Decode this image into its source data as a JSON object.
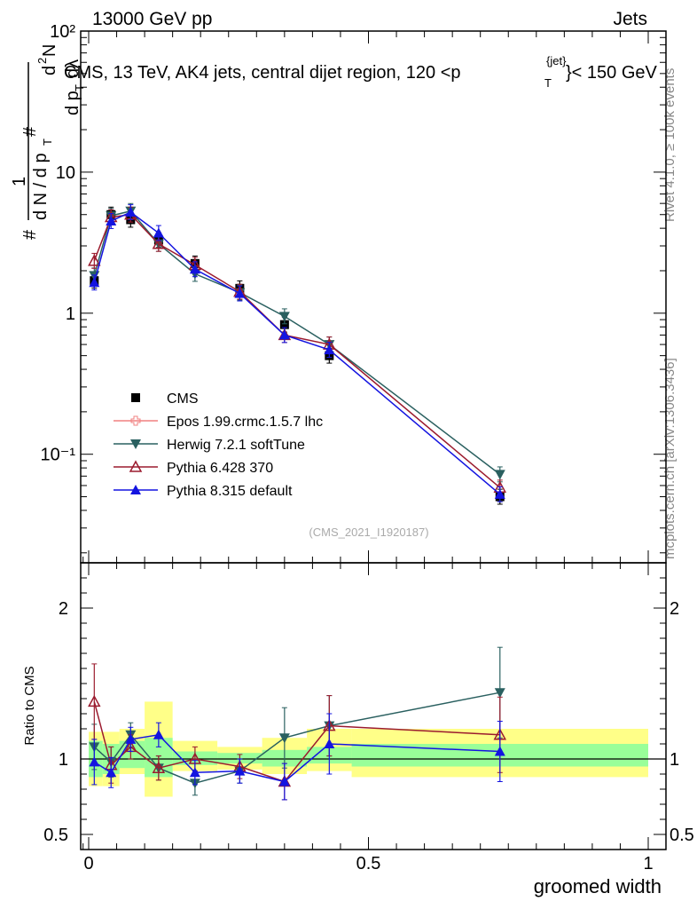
{
  "header": {
    "left": "13000 GeV pp",
    "right": "Jets",
    "plot_title": "CMS, 13 TeV, AK4 jets, central dijet region, 120 <p",
    "plot_title_sub": "T",
    "plot_title_sup": "{jet}",
    "plot_title_end": "}< 150 GeV"
  },
  "side": {
    "rivet": "Rivet 4.1.0, ≥ 100k events",
    "mcplots": "mcplots.cern.ch [arXiv:1306.3436]"
  },
  "analysis_tag": "(CMS_2021_I1920187)",
  "ylabel_main": {
    "hash1": "#",
    "num1": "1",
    "den1": "d N / d p",
    "den1_sub": "T",
    "hash2": "#",
    "num2": "d",
    "num2_sup": "2",
    "num2_rest": "N",
    "den2": "d p",
    "den2_sub": "T",
    "den2_rest": "dλ"
  },
  "ylabel_ratio": "Ratio to CMS",
  "xlabel": "groomed width",
  "colors": {
    "cms": "#000000",
    "epos": "#f08080",
    "herwig": "#2a6060",
    "pythia6": "#9b1b2e",
    "pythia8": "#1414e0",
    "band_green": "#99ff99",
    "band_yellow": "#ffff88"
  },
  "chart_data": [
    {
      "type": "scatter",
      "panel": "main",
      "yscale": "log",
      "ylim": [
        0.017,
        100
      ],
      "xlim": [
        -0.02,
        1.0
      ],
      "y_tick_labels": [
        "10⁻¹",
        "1",
        "10",
        "10²"
      ],
      "x": [
        0.01,
        0.04,
        0.075,
        0.125,
        0.19,
        0.27,
        0.35,
        0.43,
        0.735
      ],
      "series": [
        {
          "name": "CMS",
          "key": "cms",
          "marker": "square",
          "values": [
            1.7,
            5.0,
            4.6,
            3.3,
            2.25,
            1.5,
            0.83,
            0.5,
            0.05
          ]
        },
        {
          "name": "Epos 1.99.crmc.1.5.7 lhc",
          "key": "epos",
          "marker": "open-cross",
          "values": [
            null,
            null,
            null,
            null,
            null,
            null,
            null,
            null,
            null
          ]
        },
        {
          "name": "Herwig 7.2.1 softTune",
          "key": "herwig",
          "marker": "triangle-down",
          "values": [
            1.85,
            4.9,
            5.3,
            3.1,
            1.9,
            1.4,
            0.95,
            0.6,
            0.072
          ]
        },
        {
          "name": "Pythia 6.428 370",
          "key": "pythia6",
          "marker": "open-triangle",
          "values": [
            2.35,
            4.8,
            5.0,
            3.1,
            2.2,
            1.42,
            0.7,
            0.6,
            0.058
          ]
        },
        {
          "name": "Pythia 8.315 default",
          "key": "pythia8",
          "marker": "triangle",
          "values": [
            1.65,
            4.5,
            5.2,
            3.7,
            2.05,
            1.38,
            0.7,
            0.55,
            0.052
          ]
        }
      ],
      "legend": [
        "CMS",
        "Epos 1.99.crmc.1.5.7 lhc",
        "Herwig 7.2.1 softTune",
        "Pythia 6.428 370",
        "Pythia 8.315 default"
      ]
    },
    {
      "type": "scatter",
      "panel": "ratio",
      "ylim": [
        0.4,
        2.3
      ],
      "xlim": [
        -0.02,
        1.0
      ],
      "y_ticks": [
        0.5,
        1,
        2
      ],
      "y_tick_labels": [
        "0.5",
        "1",
        "2"
      ],
      "x_ticks": [
        0,
        0.5,
        1
      ],
      "x_tick_labels": [
        "0",
        "0.5",
        "1"
      ],
      "bins": [
        {
          "lo": 0.0,
          "hi": 0.025,
          "green": [
            0.88,
            1.12
          ],
          "yellow": [
            0.82,
            1.18
          ]
        },
        {
          "lo": 0.025,
          "hi": 0.055,
          "green": [
            0.9,
            1.1
          ],
          "yellow": [
            0.82,
            1.18
          ]
        },
        {
          "lo": 0.055,
          "hi": 0.1,
          "green": [
            0.94,
            1.12
          ],
          "yellow": [
            0.9,
            1.2
          ]
        },
        {
          "lo": 0.1,
          "hi": 0.15,
          "green": [
            0.88,
            1.14
          ],
          "yellow": [
            0.75,
            1.38
          ]
        },
        {
          "lo": 0.15,
          "hi": 0.23,
          "green": [
            0.96,
            1.05
          ],
          "yellow": [
            0.92,
            1.12
          ]
        },
        {
          "lo": 0.23,
          "hi": 0.31,
          "green": [
            0.97,
            1.04
          ],
          "yellow": [
            0.93,
            1.08
          ]
        },
        {
          "lo": 0.31,
          "hi": 0.39,
          "green": [
            0.95,
            1.06
          ],
          "yellow": [
            0.9,
            1.14
          ]
        },
        {
          "lo": 0.39,
          "hi": 0.47,
          "green": [
            0.97,
            1.08
          ],
          "yellow": [
            0.92,
            1.2
          ]
        },
        {
          "lo": 0.47,
          "hi": 1.0,
          "green": [
            0.95,
            1.1
          ],
          "yellow": [
            0.88,
            1.2
          ]
        }
      ],
      "x": [
        0.01,
        0.04,
        0.075,
        0.125,
        0.19,
        0.27,
        0.35,
        0.43,
        0.735
      ],
      "series": [
        {
          "name": "Herwig 7.2.1 softTune",
          "key": "herwig",
          "marker": "triangle-down",
          "values": [
            1.08,
            0.98,
            1.16,
            0.94,
            0.84,
            0.92,
            1.14,
            1.22,
            1.44
          ],
          "errors": [
            0.15,
            0.1,
            0.08,
            0.08,
            0.08,
            0.08,
            0.2,
            0.2,
            0.3
          ]
        },
        {
          "name": "Pythia 6.428 370",
          "key": "pythia6",
          "marker": "open-triangle",
          "values": [
            1.38,
            0.96,
            1.08,
            0.94,
            1.0,
            0.95,
            0.85,
            1.22,
            1.16
          ],
          "errors": [
            0.25,
            0.12,
            0.08,
            0.08,
            0.08,
            0.08,
            0.12,
            0.2,
            0.25
          ]
        },
        {
          "name": "Pythia 8.315 default",
          "key": "pythia8",
          "marker": "triangle",
          "values": [
            0.98,
            0.91,
            1.13,
            1.16,
            0.91,
            0.92,
            0.85,
            1.1,
            1.05
          ],
          "errors": [
            0.15,
            0.1,
            0.08,
            0.08,
            0.08,
            0.08,
            0.12,
            0.2,
            0.2
          ]
        }
      ]
    }
  ]
}
